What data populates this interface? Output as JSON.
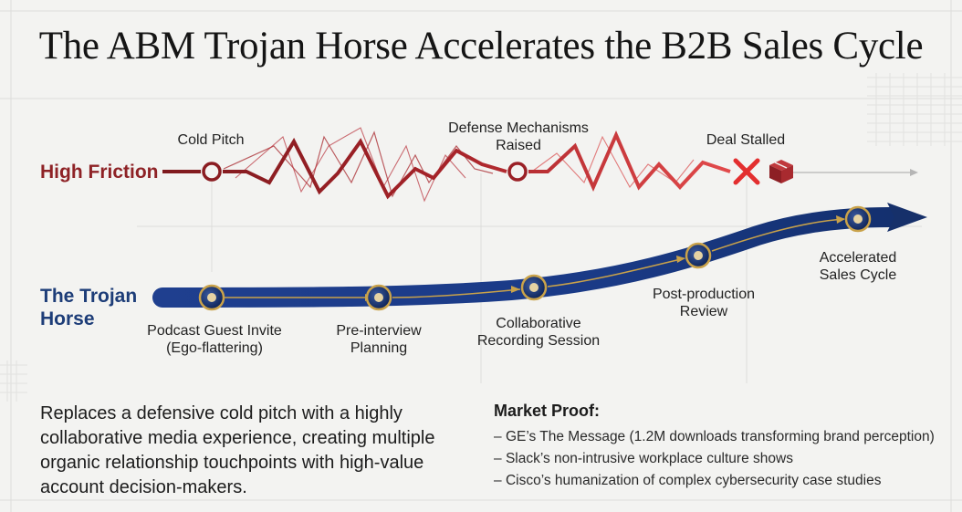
{
  "title": "The ABM Trojan Horse Accelerates the B2B Sales Cycle",
  "high_friction": {
    "label": "High Friction",
    "milestones": [
      {
        "name": "cold-pitch",
        "label": "Cold Pitch"
      },
      {
        "name": "defense-mechanisms",
        "label": "Defense Mechanisms\nRaised"
      },
      {
        "name": "deal-stalled",
        "label": "Deal Stalled"
      }
    ]
  },
  "trojan_horse": {
    "label": "The Trojan Horse",
    "milestones": [
      {
        "name": "podcast-guest-invite",
        "label": "Podcast Guest Invite\n(Ego-flattering)"
      },
      {
        "name": "pre-interview-planning",
        "label": "Pre-interview\nPlanning"
      },
      {
        "name": "collaborative-recording",
        "label": "Collaborative\nRecording Session"
      },
      {
        "name": "post-production-review",
        "label": "Post-production\nReview"
      },
      {
        "name": "accelerated-sales-cycle",
        "label": "Accelerated\nSales Cycle"
      }
    ]
  },
  "summary": "Replaces a defensive cold pitch with a highly collaborative media experience, creating multiple organic relationship touchpoints with high-value account decision-makers.",
  "market_proof": {
    "title": "Market Proof:",
    "items": [
      "GE’s The Message (1.2M downloads transforming brand perception)",
      "Slack’s non-intrusive workplace culture shows",
      "Cisco’s humanization of complex cybersecurity case studies"
    ]
  },
  "colors": {
    "friction_dark": "#7e1a1e",
    "friction_light": "#d9363a",
    "trojan_dark": "#16306a",
    "trojan_light": "#2a55a8",
    "gold": "#c9a24a"
  },
  "icons": {
    "stall_marker": "x-mark-icon",
    "stall_box": "package-icon"
  }
}
